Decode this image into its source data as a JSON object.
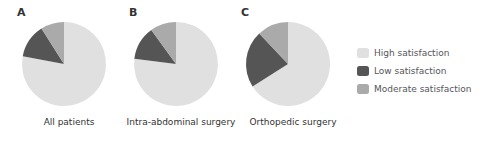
{
  "chart_data": [
    {
      "type": "pie",
      "title": "All patients",
      "annotations": [
        "A"
      ],
      "categories": [
        "High satisfaction",
        "Low satisfaction",
        "Moderate satisfaction"
      ],
      "values": [
        78,
        13,
        9
      ],
      "colors": [
        "#e0e0e0",
        "#555555",
        "#aaaaaa"
      ],
      "legend": "right"
    },
    {
      "type": "pie",
      "title": "Intra-abdominal surgery",
      "annotations": [
        "B"
      ],
      "categories": [
        "High satisfaction",
        "Low satisfaction",
        "Moderate satisfaction"
      ],
      "values": [
        77,
        13,
        10
      ],
      "colors": [
        "#e0e0e0",
        "#555555",
        "#aaaaaa"
      ],
      "legend": "right"
    },
    {
      "type": "pie",
      "title": "Orthopedic surgery",
      "annotations": [
        "C"
      ],
      "categories": [
        "High satisfaction",
        "Low satisfaction",
        "Moderate satisfaction"
      ],
      "values": [
        66,
        22,
        12
      ],
      "colors": [
        "#e0e0e0",
        "#555555",
        "#aaaaaa"
      ],
      "legend": "right"
    }
  ]
}
